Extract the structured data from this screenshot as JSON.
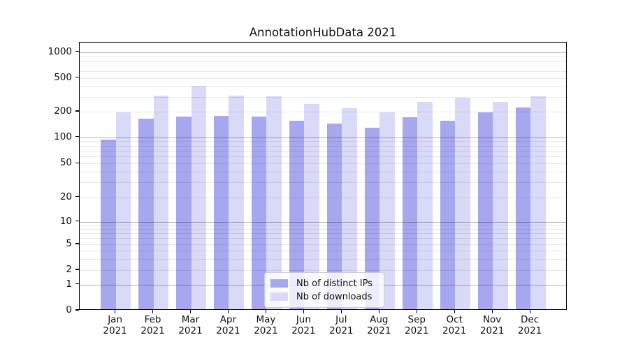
{
  "title": "AnnotationHubData 2021",
  "chart_data": {
    "type": "bar",
    "title": "AnnotationHubData 2021",
    "categories": [
      "Jan 2021",
      "Feb 2021",
      "Mar 2021",
      "Apr 2021",
      "May 2021",
      "Jun 2021",
      "Jul 2021",
      "Aug 2021",
      "Sep 2021",
      "Oct 2021",
      "Nov 2021",
      "Dec 2021"
    ],
    "series": [
      {
        "name": "Nb of distinct IPs",
        "color": "#a7a7f0",
        "values": [
          90,
          160,
          170,
          172,
          170,
          150,
          140,
          125,
          165,
          150,
          190,
          215
        ]
      },
      {
        "name": "Nb of downloads",
        "color": "#d9d9f8",
        "values": [
          190,
          295,
          390,
          295,
          290,
          235,
          210,
          190,
          250,
          280,
          250,
          290
        ]
      }
    ],
    "xlabel": "",
    "ylabel": "",
    "yscale": "symlog",
    "yticks": [
      0,
      1,
      2,
      5,
      10,
      20,
      50,
      100,
      200,
      500,
      1000
    ],
    "ylim": [
      0,
      1300
    ],
    "grid": true,
    "grid_major_at": [
      1,
      10,
      100,
      1000
    ],
    "legend_position": "lower center"
  },
  "colors": {
    "background": "#ffffff",
    "bar_distinct_ips": "#a7a7f0",
    "bar_downloads": "#d9d9f8",
    "grid_major": "#b2b2b2",
    "grid_minor": "#e8e8e8",
    "axis": "#000000"
  }
}
